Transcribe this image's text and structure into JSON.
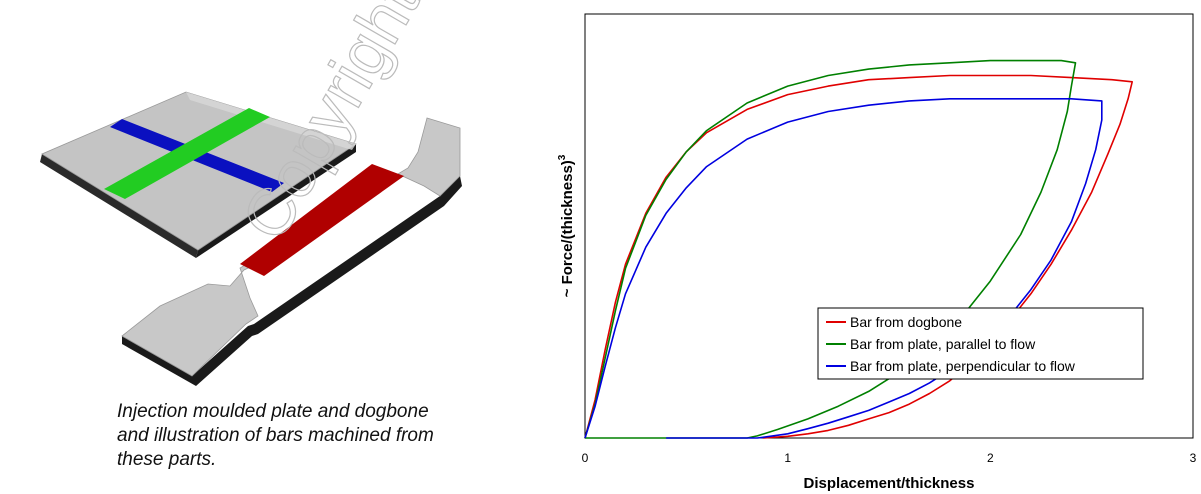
{
  "caption": {
    "line1": "Injection moulded plate and dogbone",
    "line2": "and illustration of bars machined from",
    "line3": "these parts."
  },
  "watermark": {
    "text": "Copyright"
  },
  "colors": {
    "dogbone": "#e00000",
    "parallel": "#008000",
    "perpendicular": "#0000e0",
    "plate_body": "#bdbdbd",
    "bar_red": "#b00000",
    "bar_green": "#22cc22",
    "bar_blue": "#0a10c0"
  },
  "chart_data": {
    "type": "line",
    "xlabel": "Displacement/thickness",
    "ylabel": "~ Force/(thickness)",
    "ylabel_superscript": "3",
    "xlim": [
      0,
      3
    ],
    "ylim": [
      0,
      1
    ],
    "xticks": [
      "0",
      "1",
      "2",
      "3"
    ],
    "grid": false,
    "legend_position": "lower-right",
    "series": [
      {
        "name": "Bar from dogbone",
        "color": "#e00000",
        "loading": [
          [
            0,
            0
          ],
          [
            0.05,
            0.09
          ],
          [
            0.1,
            0.21
          ],
          [
            0.15,
            0.32
          ],
          [
            0.2,
            0.41
          ],
          [
            0.3,
            0.53
          ],
          [
            0.4,
            0.615
          ],
          [
            0.5,
            0.675
          ],
          [
            0.6,
            0.72
          ],
          [
            0.8,
            0.775
          ],
          [
            1.0,
            0.81
          ],
          [
            1.2,
            0.83
          ],
          [
            1.4,
            0.845
          ],
          [
            1.6,
            0.85
          ],
          [
            1.8,
            0.855
          ],
          [
            2.0,
            0.855
          ],
          [
            2.2,
            0.855
          ],
          [
            2.4,
            0.85
          ],
          [
            2.6,
            0.845
          ],
          [
            2.7,
            0.84
          ]
        ],
        "unloading": [
          [
            2.7,
            0.84
          ],
          [
            2.68,
            0.8
          ],
          [
            2.64,
            0.74
          ],
          [
            2.58,
            0.67
          ],
          [
            2.5,
            0.58
          ],
          [
            2.4,
            0.49
          ],
          [
            2.3,
            0.41
          ],
          [
            2.2,
            0.34
          ],
          [
            2.1,
            0.28
          ],
          [
            2.0,
            0.22
          ],
          [
            1.9,
            0.175
          ],
          [
            1.8,
            0.135
          ],
          [
            1.7,
            0.105
          ],
          [
            1.6,
            0.08
          ],
          [
            1.5,
            0.06
          ],
          [
            1.4,
            0.045
          ],
          [
            1.3,
            0.03
          ],
          [
            1.2,
            0.018
          ],
          [
            1.1,
            0.01
          ],
          [
            1.0,
            0.004
          ],
          [
            0.88,
            0
          ]
        ]
      },
      {
        "name": "Bar from plate, parallel to flow",
        "color": "#008000",
        "loading": [
          [
            0,
            0
          ],
          [
            0.05,
            0.08
          ],
          [
            0.1,
            0.19
          ],
          [
            0.15,
            0.3
          ],
          [
            0.2,
            0.4
          ],
          [
            0.3,
            0.525
          ],
          [
            0.4,
            0.61
          ],
          [
            0.5,
            0.675
          ],
          [
            0.6,
            0.725
          ],
          [
            0.8,
            0.79
          ],
          [
            1.0,
            0.83
          ],
          [
            1.2,
            0.855
          ],
          [
            1.4,
            0.87
          ],
          [
            1.6,
            0.88
          ],
          [
            1.8,
            0.885
          ],
          [
            2.0,
            0.89
          ],
          [
            2.2,
            0.89
          ],
          [
            2.35,
            0.89
          ],
          [
            2.42,
            0.885
          ]
        ],
        "unloading": [
          [
            2.42,
            0.885
          ],
          [
            2.4,
            0.83
          ],
          [
            2.38,
            0.77
          ],
          [
            2.33,
            0.68
          ],
          [
            2.25,
            0.58
          ],
          [
            2.15,
            0.48
          ],
          [
            2.0,
            0.37
          ],
          [
            1.85,
            0.28
          ],
          [
            1.7,
            0.21
          ],
          [
            1.55,
            0.155
          ],
          [
            1.4,
            0.11
          ],
          [
            1.25,
            0.075
          ],
          [
            1.1,
            0.045
          ],
          [
            0.95,
            0.02
          ],
          [
            0.85,
            0.005
          ],
          [
            0.8,
            0
          ],
          [
            0,
            0
          ]
        ]
      },
      {
        "name": "Bar from plate, perpendicular to flow",
        "color": "#0000e0",
        "loading": [
          [
            0,
            0
          ],
          [
            0.05,
            0.075
          ],
          [
            0.1,
            0.17
          ],
          [
            0.15,
            0.26
          ],
          [
            0.2,
            0.34
          ],
          [
            0.3,
            0.45
          ],
          [
            0.4,
            0.53
          ],
          [
            0.5,
            0.59
          ],
          [
            0.6,
            0.64
          ],
          [
            0.8,
            0.705
          ],
          [
            1.0,
            0.745
          ],
          [
            1.2,
            0.77
          ],
          [
            1.4,
            0.785
          ],
          [
            1.6,
            0.795
          ],
          [
            1.8,
            0.8
          ],
          [
            2.0,
            0.8
          ],
          [
            2.2,
            0.8
          ],
          [
            2.4,
            0.8
          ],
          [
            2.55,
            0.795
          ]
        ],
        "unloading": [
          [
            2.55,
            0.795
          ],
          [
            2.55,
            0.75
          ],
          [
            2.52,
            0.68
          ],
          [
            2.47,
            0.6
          ],
          [
            2.4,
            0.51
          ],
          [
            2.3,
            0.42
          ],
          [
            2.2,
            0.35
          ],
          [
            2.1,
            0.29
          ],
          [
            2.0,
            0.24
          ],
          [
            1.9,
            0.195
          ],
          [
            1.8,
            0.16
          ],
          [
            1.7,
            0.13
          ],
          [
            1.6,
            0.105
          ],
          [
            1.5,
            0.085
          ],
          [
            1.4,
            0.065
          ],
          [
            1.3,
            0.05
          ],
          [
            1.2,
            0.035
          ],
          [
            1.1,
            0.022
          ],
          [
            1.0,
            0.01
          ],
          [
            0.9,
            0.003
          ],
          [
            0.85,
            0
          ],
          [
            0.4,
            0
          ]
        ]
      }
    ]
  }
}
